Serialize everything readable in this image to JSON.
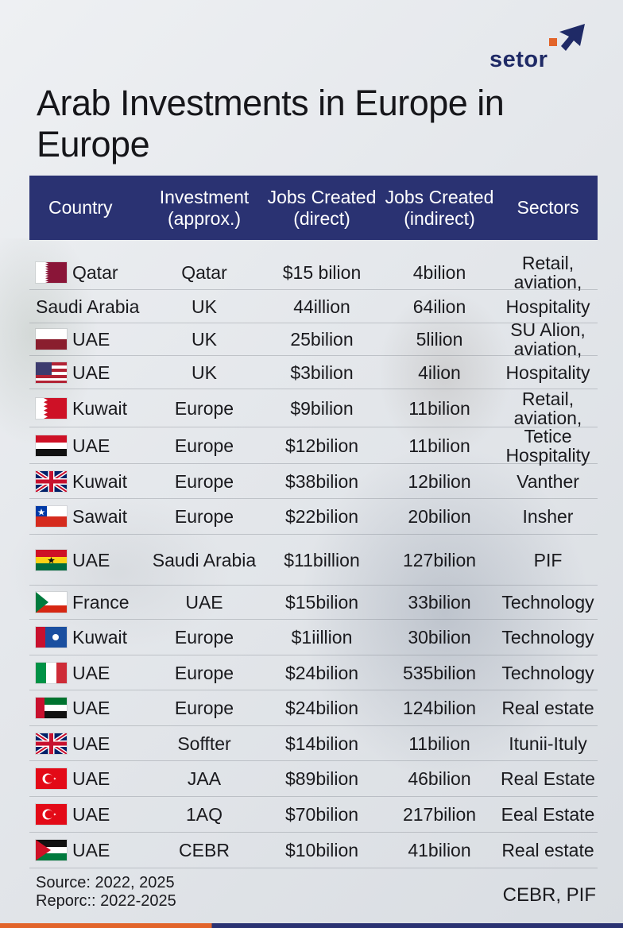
{
  "brand": {
    "name": "setor"
  },
  "title": "Arab Investments in Europe in Europe",
  "headers": {
    "country": "Country",
    "investment": "Investment (approx.)",
    "jobs_direct": "Jobs Created (direct)",
    "jobs_indirect": "Jobs Created (indirect)",
    "sectors": "Sectors"
  },
  "rows": [
    {
      "country": "Qatar",
      "flag": "qatar-flag",
      "investment": "Qatar",
      "jobs_direct": "$15 bilion",
      "jobs_indirect": "4bilion",
      "sectors": "Retail, aviation,"
    },
    {
      "country": "Saudi Arabia",
      "flag": "",
      "investment": "UK",
      "jobs_direct": "44illion",
      "jobs_indirect": "64ilion",
      "sectors": "Hospitality"
    },
    {
      "country": "UAE",
      "flag": "red-white-flag",
      "investment": "UK",
      "jobs_direct": "25bilion",
      "jobs_indirect": "5lilion",
      "sectors": "SU Alion, aviation,"
    },
    {
      "country": "UAE",
      "flag": "stripes-flag",
      "investment": "UK",
      "jobs_direct": "$3bilion",
      "jobs_indirect": "4ilion",
      "sectors": "Hospitality"
    },
    {
      "country": "Kuwait",
      "flag": "bahrain-flag",
      "investment": "Europe",
      "jobs_direct": "$9bilion",
      "jobs_indirect": "11bilion",
      "sectors": "Retail, aviation,"
    },
    {
      "country": "UAE",
      "flag": "yemen-flag",
      "investment": "Europe",
      "jobs_direct": "$12bilion",
      "jobs_indirect": "11bilion",
      "sectors": "Tetice Hospitality"
    },
    {
      "country": "Kuwait",
      "flag": "uk-flag",
      "investment": "Europe",
      "jobs_direct": "$38bilion",
      "jobs_indirect": "12bilion",
      "sectors": "Vanther"
    },
    {
      "country": "Sawait",
      "flag": "chile-flag",
      "investment": "Europe",
      "jobs_direct": "$22bilion",
      "jobs_indirect": "20bilion",
      "sectors": "Insher"
    },
    {
      "country": "UAE",
      "flag": "ghana-flag",
      "investment": "Saudi Arabia",
      "jobs_direct": "$11billion",
      "jobs_indirect": "127bilion",
      "sectors": "PIF"
    },
    {
      "country": "France",
      "flag": "green-white-red-flag",
      "investment": "UAE",
      "jobs_direct": "$15bilion",
      "jobs_indirect": "33bilion",
      "sectors": "Technology"
    },
    {
      "country": "Kuwait",
      "flag": "red-blue-flag",
      "investment": "Europe",
      "jobs_direct": "$1iillion",
      "jobs_indirect": "30bilion",
      "sectors": "Technology"
    },
    {
      "country": "UAE",
      "flag": "italy-flag",
      "investment": "Europe",
      "jobs_direct": "$24bilion",
      "jobs_indirect": "535bilion",
      "sectors": "Technology"
    },
    {
      "country": "UAE",
      "flag": "uae-flag",
      "investment": "Europe",
      "jobs_direct": "$24bilion",
      "jobs_indirect": "124bilion",
      "sectors": "Real estate"
    },
    {
      "country": "UAE",
      "flag": "uk-flag",
      "investment": "Soffter",
      "jobs_direct": "$14bilion",
      "jobs_indirect": "11bilion",
      "sectors": "Itunii-Ituly"
    },
    {
      "country": "UAE",
      "flag": "turkey-flag",
      "investment": "JAA",
      "jobs_direct": "$89bilion",
      "jobs_indirect": "46bilion",
      "sectors": "Real Estate"
    },
    {
      "country": "UAE",
      "flag": "turkey-flag",
      "investment": "1AQ",
      "jobs_direct": "$70bilion",
      "jobs_indirect": "217bilion",
      "sectors": "Eeal Estate"
    },
    {
      "country": "UAE",
      "flag": "jordan-flag",
      "investment": "CEBR",
      "jobs_direct": "$10bilion",
      "jobs_indirect": "41bilion",
      "sectors": "Real estate"
    }
  ],
  "footer": {
    "source_line": "Source: 2022, 2025",
    "reports_line": "Reporc:: 2022-2025",
    "credits": "CEBR, PIF"
  },
  "colors": {
    "header": "#2a3272",
    "accent": "#e2642a"
  }
}
